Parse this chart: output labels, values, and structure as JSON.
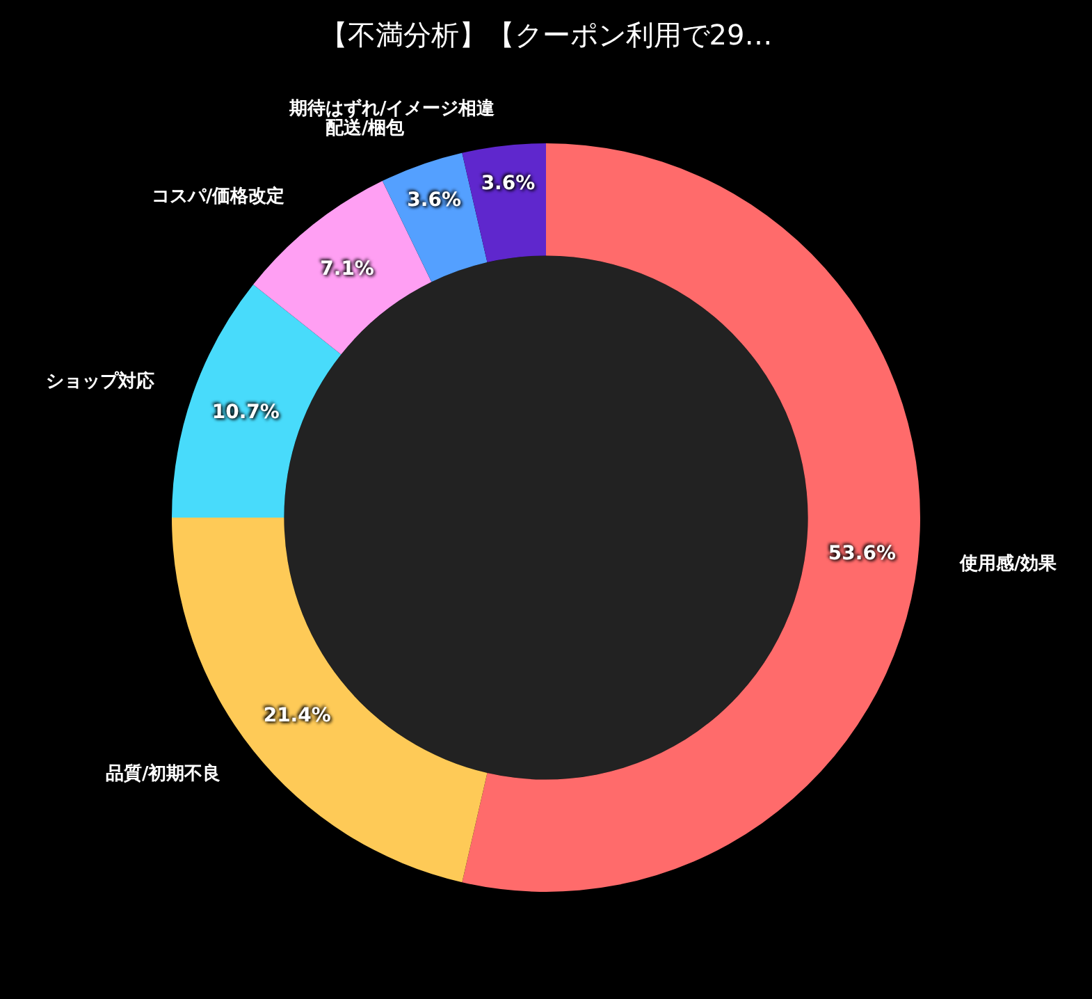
{
  "chart_data": {
    "type": "donut",
    "title": "【不満分析】【クーポン利用で29…",
    "categories": [
      "使用感/効果",
      "品質/初期不良",
      "ショップ対応",
      "コスパ/価格改定",
      "配送/梱包",
      "期待はずれ/イメージ相違"
    ],
    "values": [
      53.6,
      21.4,
      10.7,
      7.1,
      3.6,
      3.6
    ],
    "value_labels": [
      "53.6%",
      "21.4%",
      "10.7%",
      "7.1%",
      "3.6%",
      "3.6%"
    ],
    "colors": [
      "#ff6b6b",
      "#feca57",
      "#48dbfb",
      "#ff9ff3",
      "#54a0ff",
      "#5f27cd"
    ],
    "legend": false
  }
}
